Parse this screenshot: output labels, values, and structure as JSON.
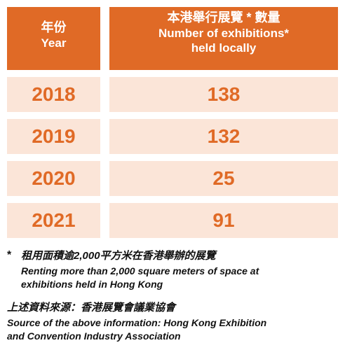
{
  "table": {
    "header": {
      "year_zh": "年份",
      "year_en": "Year",
      "count_zh": "本港舉行展覽 * 數量",
      "count_en_line1": "Number of exhibitions*",
      "count_en_line2": "held locally"
    },
    "rows": [
      {
        "year": "2018",
        "count": "138"
      },
      {
        "year": "2019",
        "count": "132"
      },
      {
        "year": "2020",
        "count": "25"
      },
      {
        "year": "2021",
        "count": "91"
      }
    ]
  },
  "footnote": {
    "marker": "*",
    "text_zh": "租用面積逾2,000平方米在香港舉辦的展覽",
    "text_en_line1": "Renting more than 2,000 square meters of space at",
    "text_en_line2": "exhibitions held in Hong Kong"
  },
  "source": {
    "text_zh": "上述資料來源：香港展覽會議業協會",
    "text_en_line1": "Source of the above information: Hong Kong Exhibition",
    "text_en_line2": "and Convention Industry Association"
  },
  "colors": {
    "header_bg": "#e06a26",
    "row_bg": "#fbe5d8",
    "value_text": "#e06a26"
  }
}
